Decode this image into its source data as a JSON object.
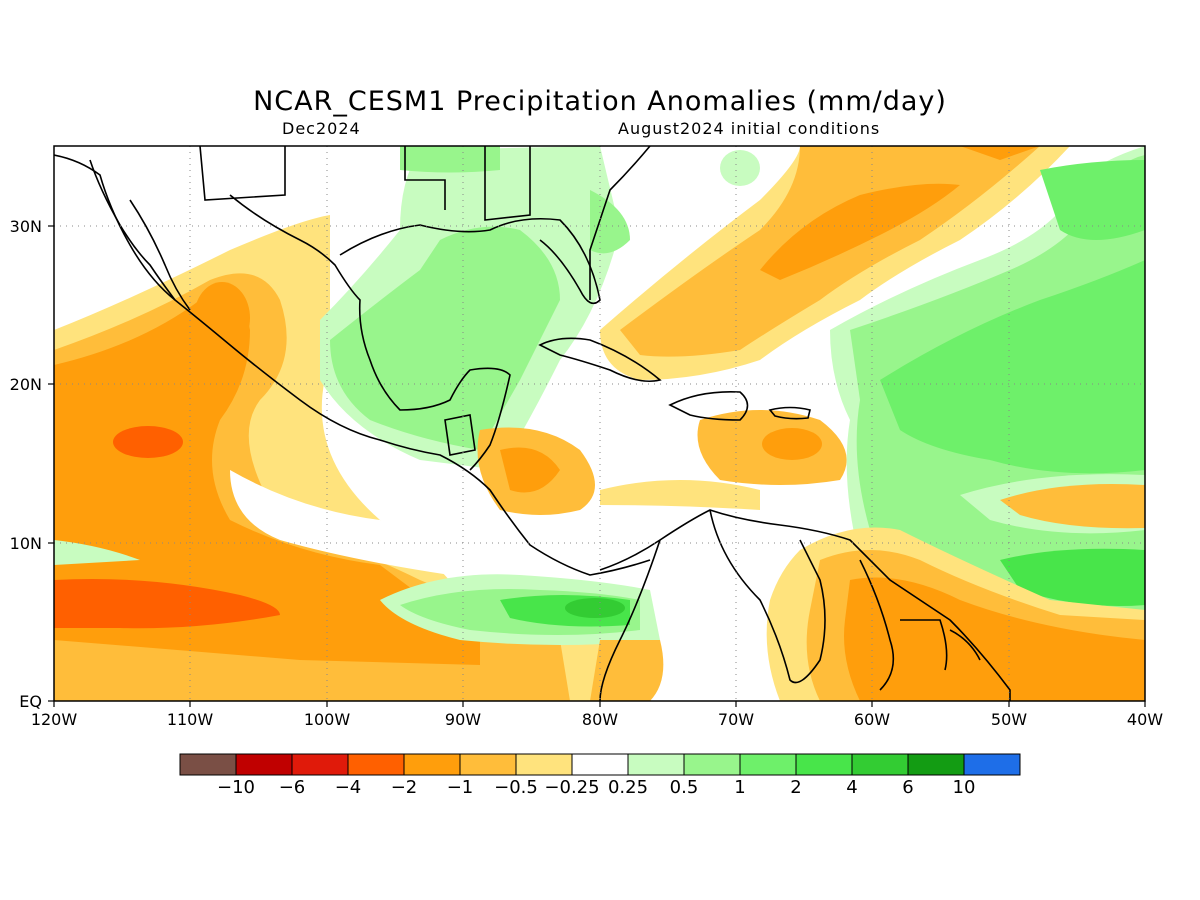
{
  "title": "NCAR_CESM1 Precipitation Anomalies (mm/day)",
  "valid_month": "Dec2024",
  "initial_conditions": "August2024 initial conditions",
  "map": {
    "lon_range": [
      "120W",
      "40W"
    ],
    "lat_range": [
      "EQ",
      "35N"
    ],
    "x_ticks": [
      "120W",
      "110W",
      "100W",
      "90W",
      "80W",
      "70W",
      "60W",
      "50W",
      "40W"
    ],
    "y_ticks": [
      "EQ",
      "10N",
      "20N",
      "30N"
    ],
    "grid": "dotted"
  },
  "colorbar": {
    "colors": [
      "#7a4f45",
      "#c00000",
      "#e01a0a",
      "#ff6000",
      "#ff9e0c",
      "#ffbd3a",
      "#ffe37d",
      "#ffffff",
      "#c8fcc0",
      "#98f58c",
      "#6ef06a",
      "#48e54a",
      "#33cc33",
      "#139c13",
      "#1e6ee8"
    ],
    "labels": [
      "−10",
      "−6",
      "−4",
      "−2",
      "−1",
      "−0.5",
      "−0.25",
      "0.25",
      "0.5",
      "1",
      "2",
      "4",
      "6",
      "10"
    ]
  }
}
